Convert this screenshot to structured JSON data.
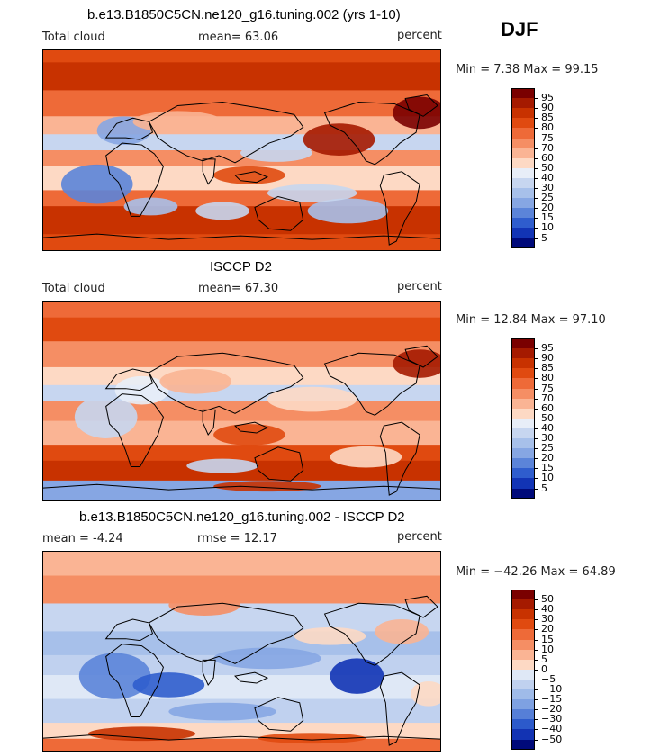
{
  "season": "DJF",
  "panels": [
    {
      "title": "b.e13.B1850C5CN.ne120_g16.tuning.002 (yrs 1-10)",
      "left_label": "Total cloud",
      "mid_label": "mean=  63.06",
      "units": "percent",
      "minmax": "Min =   7.38 Max =  99.15",
      "colorbar_labels": [
        "95",
        "90",
        "85",
        "80",
        "75",
        "70",
        "60",
        "50",
        "40",
        "30",
        "25",
        "20",
        "15",
        "10",
        "5"
      ],
      "palette": "abs"
    },
    {
      "title": "ISCCP D2",
      "left_label": "Total cloud",
      "mid_label": "mean=  67.30",
      "units": "percent",
      "minmax": "Min =  12.84 Max =  97.10",
      "colorbar_labels": [
        "95",
        "90",
        "85",
        "80",
        "75",
        "70",
        "60",
        "50",
        "40",
        "30",
        "25",
        "20",
        "15",
        "10",
        "5"
      ],
      "palette": "abs"
    },
    {
      "title": "b.e13.B1850C5CN.ne120_g16.tuning.002 - ISCCP D2",
      "left_label": "mean =  -4.24",
      "mid_label": "rmse =  12.17",
      "units": "percent",
      "minmax": "Min = −42.26 Max =  64.89",
      "colorbar_labels": [
        "50",
        "40",
        "30",
        "20",
        "15",
        "10",
        "5",
        "0",
        "−5",
        "−10",
        "−15",
        "−20",
        "−30",
        "−40",
        "−50"
      ],
      "palette": "diff"
    }
  ],
  "colors": {
    "scale": [
      "#7a0000",
      "#a51a00",
      "#c83200",
      "#e04a10",
      "#ee6a38",
      "#f58e64",
      "#fab494",
      "#fdd9c4",
      "#e8eef8",
      "#c7d6f0",
      "#a7c0ea",
      "#86a6e3",
      "#5b84d9",
      "#2f5dcd",
      "#1234b5",
      "#000a7a"
    ],
    "diff_scale": [
      "#7a0000",
      "#a51a00",
      "#c83200",
      "#e04a10",
      "#ee6a38",
      "#f58e64",
      "#fab494",
      "#fdd9c4",
      "#dfe8f6",
      "#c0d1ef",
      "#9fbbe9",
      "#7ea1e2",
      "#567fd7",
      "#2c5acb",
      "#1233b3",
      "#000a7a"
    ]
  }
}
